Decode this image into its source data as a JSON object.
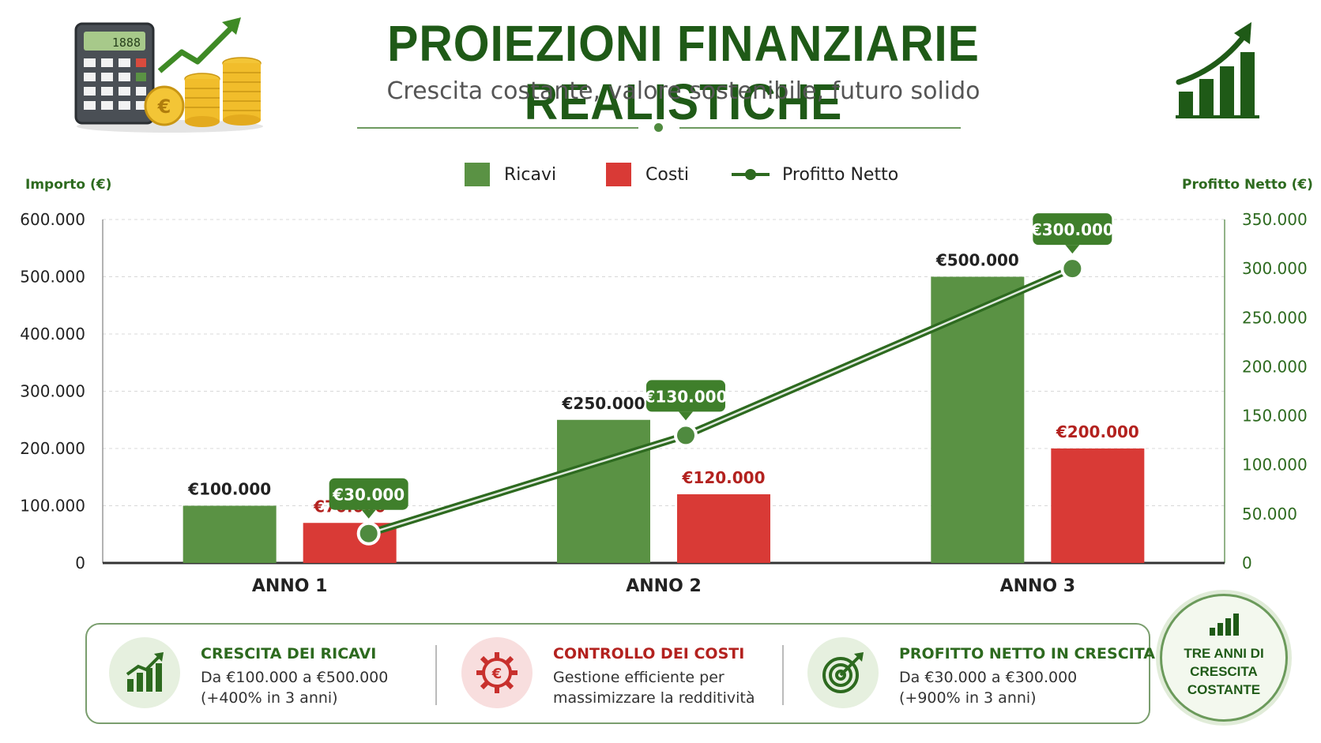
{
  "header": {
    "title": "PROIEZIONI FINANZIARIE REALISTICHE",
    "subtitle": "Crescita costante, valore sostenibile, futuro solido"
  },
  "icons": {
    "left": "calculator-coins-arrow-icon",
    "right": "growth-bar-chart-icon"
  },
  "colors": {
    "ricavi": "#5a9244",
    "costi": "#d93a36",
    "profitto": "#2d6a1f",
    "title": "#1f5a17"
  },
  "legend": {
    "ricavi": "Ricavi",
    "costi": "Costi",
    "profitto": "Profitto Netto"
  },
  "axes": {
    "left_title": "Importo (€)",
    "right_title": "Profitto Netto (€)"
  },
  "chart_data": {
    "type": "bar",
    "categories": [
      "ANNO 1",
      "ANNO 2",
      "ANNO 3"
    ],
    "series": [
      {
        "name": "Ricavi",
        "type": "bar",
        "axis": "left",
        "values": [
          100000,
          250000,
          500000
        ],
        "labels": [
          "€100.000",
          "€250.000",
          "€500.000"
        ]
      },
      {
        "name": "Costi",
        "type": "bar",
        "axis": "left",
        "values": [
          70000,
          120000,
          200000
        ],
        "labels": [
          "€70.000",
          "€120.000",
          "€200.000"
        ]
      },
      {
        "name": "Profitto Netto",
        "type": "line",
        "axis": "right",
        "values": [
          30000,
          130000,
          300000
        ],
        "labels": [
          "€30.000",
          "€130.000",
          "€300.000"
        ]
      }
    ],
    "ylim_left": [
      0,
      600000
    ],
    "ylim_right": [
      0,
      350000
    ],
    "left_ticks": [
      "0",
      "100.000",
      "200.000",
      "300.000",
      "400.000",
      "500.000",
      "600.000"
    ],
    "right_ticks": [
      "0",
      "50.000",
      "100.000",
      "150.000",
      "200.000",
      "250.000",
      "300.000",
      "350.000"
    ],
    "ylabel": "Importo (€)",
    "ylabel_right": "Profitto Netto (€)",
    "grid": true,
    "legend_position": "top"
  },
  "cards": [
    {
      "title": "CRESCITA DEI RICAVI",
      "line1": "Da €100.000 a €500.000",
      "line2": "(+400% in 3 anni)",
      "icon": "growth-chart-icon",
      "title_color": "#2d6a1f"
    },
    {
      "title": "CONTROLLO DEI COSTI",
      "line1": "Gestione efficiente per",
      "line2": "massimizzare la redditività",
      "icon": "euro-gear-icon",
      "title_color": "#b3221f"
    },
    {
      "title": "PROFITTO NETTO IN CRESCITA",
      "line1": "Da €30.000 a €300.000",
      "line2": "(+900% in 3 anni)",
      "icon": "target-arrow-icon",
      "title_color": "#2d6a1f"
    }
  ],
  "badge": {
    "line1": "TRE ANNI DI",
    "line2": "CRESCITA",
    "line3": "COSTANTE",
    "icon": "bar-chart-icon"
  }
}
